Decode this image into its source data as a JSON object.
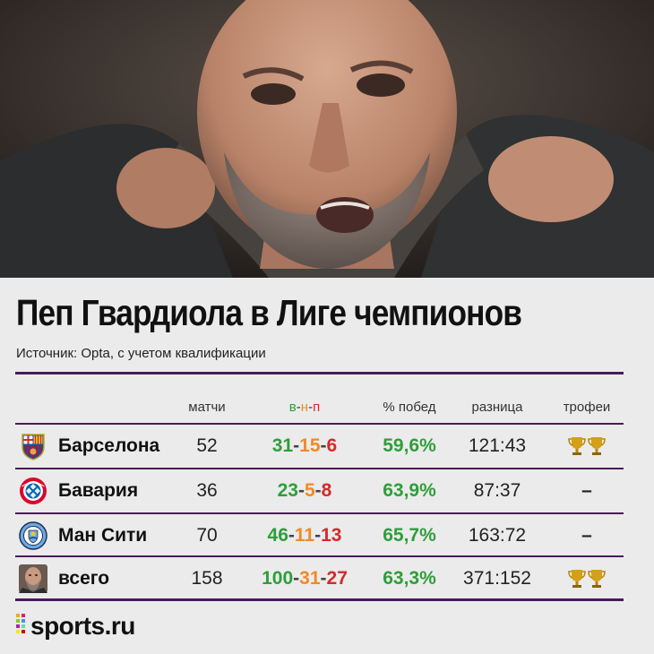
{
  "title": "Пеп Гвардиола в Лиге чемпионов",
  "source": "Источник: Opta, с учетом квалификации",
  "headers": {
    "matches": "матчи",
    "w": "в",
    "d": "н",
    "l": "п",
    "pct": "% побед",
    "diff": "разница",
    "trophies": "трофеи"
  },
  "rows": [
    {
      "team": "Барселона",
      "matches": "52",
      "w": "31",
      "d": "15",
      "l": "6",
      "pct": "59,6%",
      "diff": "121:43",
      "trophies_count": 2,
      "trophies_text": ""
    },
    {
      "team": "Бавария",
      "matches": "36",
      "w": "23",
      "d": "5",
      "l": "8",
      "pct": "63,9%",
      "diff": "87:37",
      "trophies_count": 0,
      "trophies_text": "–"
    },
    {
      "team": "Ман Сити",
      "matches": "70",
      "w": "46",
      "d": "11",
      "l": "13",
      "pct": "65,7%",
      "diff": "163:72",
      "trophies_count": 0,
      "trophies_text": "–"
    },
    {
      "team": "всего",
      "matches": "158",
      "w": "100",
      "d": "31",
      "l": "27",
      "pct": "63,3%",
      "diff": "371:152",
      "trophies_count": 2,
      "trophies_text": ""
    }
  ],
  "brand": "sports.ru",
  "colors": {
    "win": "#2e9e3a",
    "draw": "#f08a24",
    "loss": "#d22b2b",
    "rule": "#4b1a5a"
  },
  "icons": [
    "barcelona-crest-icon",
    "bayern-crest-icon",
    "man-city-crest-icon",
    "guardiola-avatar-icon",
    "trophy-icon"
  ]
}
